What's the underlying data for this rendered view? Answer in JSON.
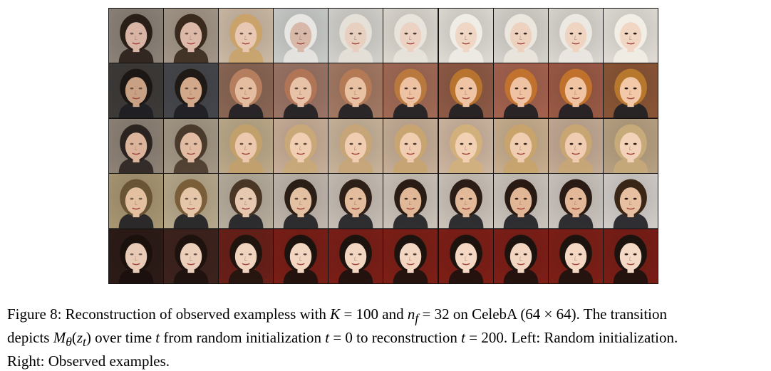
{
  "figure": {
    "rows": 5,
    "cols": 10,
    "tiles": [
      [
        "#8b8278",
        "#a39688",
        "#cbb9a4",
        "#c9cbc9",
        "#d3d1cc",
        "#dcd8d0",
        "#dedad4",
        "#d6d2cc",
        "#dad6d0",
        "#e1ddd6"
      ],
      [
        "#3d3a38",
        "#45464b",
        "#8a6654",
        "#9a7465",
        "#a37963",
        "#a06a55",
        "#8e5a45",
        "#a4624e",
        "#9a5a45",
        "#8a5536"
      ],
      [
        "#8e8276",
        "#a49785",
        "#bca989",
        "#c8ae98",
        "#c8b399",
        "#c6ae97",
        "#cdb5a0",
        "#c8ae8e",
        "#c3aa94",
        "#b8a182"
      ],
      [
        "#a89672",
        "#b6a88a",
        "#b7ad9d",
        "#c0b6ac",
        "#c6bdb4",
        "#cbc2b8",
        "#cbc2b9",
        "#cbc4bc",
        "#cbc4be",
        "#d1ccc8"
      ],
      [
        "#2c1a16",
        "#3d221c",
        "#6a1f18",
        "#7a1e16",
        "#7b1e17",
        "#7e1f16",
        "#7e1e16",
        "#7e1e17",
        "#7d1f16",
        "#7a1d16"
      ]
    ],
    "hair": [
      [
        "#2a1e18",
        "#3a2a1e",
        "#c9a36a",
        "#e8e6e2",
        "#e6e1d8",
        "#e8e4dc",
        "#f0ece6",
        "#ebe6de",
        "#ece8e2",
        "#f2eee6"
      ],
      [
        "#1c1714",
        "#201a16",
        "#b57e5e",
        "#b07556",
        "#b47a55",
        "#b8783e",
        "#b8742f",
        "#c1722f",
        "#c0722c",
        "#b7782e"
      ],
      [
        "#2b2320",
        "#4a3a2c",
        "#c2a06c",
        "#c8a878",
        "#c6a578",
        "#c8a470",
        "#d2b07c",
        "#c8a46c",
        "#c8a674",
        "#c6aa7a"
      ],
      [
        "#6a5436",
        "#7a5e3a",
        "#4a3624",
        "#2a1e16",
        "#2e2018",
        "#2a1c14",
        "#2c1e16",
        "#281a12",
        "#2a1c14",
        "#3a2616"
      ],
      [
        "#1a100c",
        "#1e120e",
        "#20140f",
        "#1c120e",
        "#1c120e",
        "#1c120e",
        "#1c120e",
        "#1c120e",
        "#1c120e",
        "#1c120e"
      ]
    ],
    "skin": [
      [
        "#d8b4a4",
        "#dcb8a8",
        "#e8c8b2",
        "#d8b8a8",
        "#e8d0c0",
        "#ecd2c2",
        "#f0d6c4",
        "#eed2c0",
        "#f0d4c2",
        "#f2d6c4"
      ],
      [
        "#c8a084",
        "#d2a88a",
        "#e4bca0",
        "#e8c2a6",
        "#e8c0a2",
        "#ecc2a2",
        "#eec4a4",
        "#eec2a2",
        "#f0c4a2",
        "#f2c8a8"
      ],
      [
        "#dcb49c",
        "#e2bca2",
        "#ecc8ae",
        "#f0ceb2",
        "#f0ccb0",
        "#f0ccb0",
        "#f2d0b4",
        "#f0ccb0",
        "#f0ccb2",
        "#f2d2b8"
      ],
      [
        "#e2c0a0",
        "#e6c6a8",
        "#e6c8b0",
        "#e4c0a2",
        "#e2bc9c",
        "#e0b898",
        "#e2ba9a",
        "#e0b696",
        "#e2b898",
        "#e6c0a0"
      ],
      [
        "#e8cbb6",
        "#eccfba",
        "#f0d4c0",
        "#f2d6c2",
        "#f2d6c2",
        "#f2d6c2",
        "#f4d8c4",
        "#f2d6c2",
        "#f4d8c4",
        "#f4dac6"
      ]
    ]
  },
  "caption": {
    "line1_a": "Figure 8: Reconstruction of observed exampless with ",
    "var_K": "K",
    "eq_100": " = 100 and ",
    "var_n": "n",
    "sub_f": "f",
    "eq_32": " = 32 on CelebA (64 × 64). The transition",
    "line2_a": "depicts ",
    "var_M": "M",
    "sub_theta": "θ",
    "paren_open": "(",
    "var_z": "z",
    "sub_t": "t",
    "paren_close": ")",
    "line2_b": " over time ",
    "var_t1": "t",
    "line2_c": " from random initialization ",
    "var_t2": "t",
    "eq_0": " = 0 to reconstruction ",
    "var_t3": "t",
    "eq_200": " = 200. Left: Random initialization.",
    "line3": "Right: Observed examples."
  }
}
